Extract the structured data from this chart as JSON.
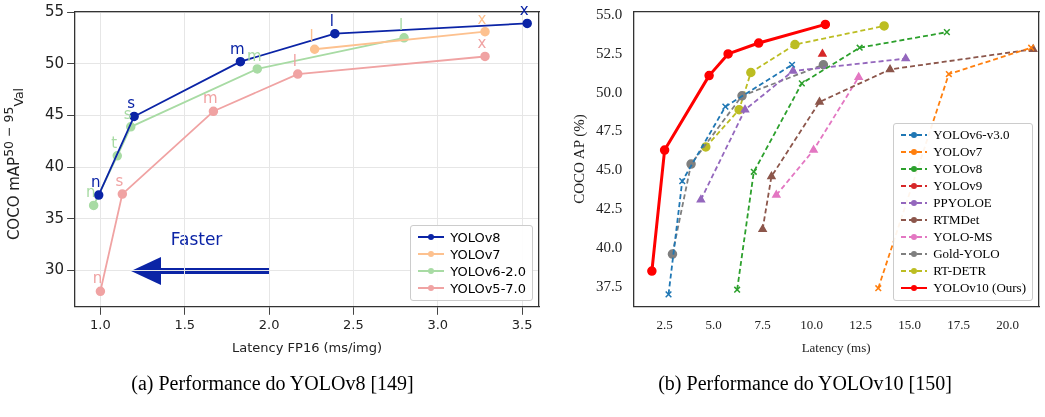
{
  "chart_data": [
    {
      "type": "line",
      "xlabel": "Latency FP16 (ms/img)",
      "ylabel": "COCO mAP$^{50 − 95}$$_{Val}$",
      "xlim": [
        0.85,
        3.6
      ],
      "ylim": [
        26.5,
        55
      ],
      "xticks": [
        {
          "value": 1,
          "label": "1.0"
        },
        {
          "value": 1.5,
          "label": "1.5"
        },
        {
          "value": 2,
          "label": "2.0"
        },
        {
          "value": 2.5,
          "label": "2.5"
        },
        {
          "value": 3,
          "label": "3.0"
        },
        {
          "value": 3.5,
          "label": "3.5"
        }
      ],
      "yticks": [
        30,
        35,
        40,
        45,
        50,
        55
      ],
      "grid": true,
      "legend": "bottom right",
      "marker": "circle",
      "line_style": "solid",
      "series": [
        {
          "name": "YOLOv8",
          "color": "#0b24a6",
          "x": [
            0.99,
            1.2,
            1.83,
            2.39,
            3.53
          ],
          "values": [
            37.3,
            44.9,
            50.2,
            52.9,
            53.9
          ],
          "value_labels": [
            "n",
            "s",
            "m",
            "l",
            "x"
          ]
        },
        {
          "name": "YOLOv7",
          "color": "#fdc18f",
          "x": [
            2.27,
            3.28
          ],
          "values": [
            51.4,
            53.1
          ],
          "value_labels": [
            "l",
            "x"
          ]
        },
        {
          "name": "YOLOv6-2.0",
          "color": "#a8dba4",
          "x": [
            0.96,
            1.1,
            1.18,
            1.93,
            2.8
          ],
          "values": [
            36.3,
            41.1,
            43.9,
            49.5,
            52.5
          ],
          "value_labels": [
            "n",
            "t",
            "s",
            "m",
            "l"
          ]
        },
        {
          "name": "YOLOv5-7.0",
          "color": "#f0a3a3",
          "x": [
            1.0,
            1.13,
            1.67,
            2.17,
            3.28
          ],
          "values": [
            28.0,
            37.4,
            45.4,
            49.0,
            50.7
          ],
          "value_labels": [
            "n",
            "s",
            "m",
            "l",
            "x"
          ]
        }
      ],
      "annotations": [
        "Faster",
        "(a) Performance do YOLOv8 [149]"
      ]
    },
    {
      "type": "line",
      "xlabel": "Latency (ms)",
      "ylabel": "COCO AP (%)",
      "xlim": [
        0.9,
        21.6
      ],
      "ylim": [
        36.2,
        55.2
      ],
      "xticks": [
        {
          "value": 2.5,
          "label": "2.5"
        },
        {
          "value": 5,
          "label": "5.0"
        },
        {
          "value": 7.5,
          "label": "7.5"
        },
        {
          "value": 10,
          "label": "10.0"
        },
        {
          "value": 12.5,
          "label": "12.5"
        },
        {
          "value": 15,
          "label": "15.0"
        },
        {
          "value": 17.5,
          "label": "17.5"
        },
        {
          "value": 20,
          "label": "20.0"
        }
      ],
      "yticks": [
        {
          "value": 37.5,
          "label": "37.5"
        },
        {
          "value": 40,
          "label": "40.0"
        },
        {
          "value": 42.5,
          "label": "42.5"
        },
        {
          "value": 45,
          "label": "45.0"
        },
        {
          "value": 47.5,
          "label": "47.5"
        },
        {
          "value": 50,
          "label": "50.0"
        },
        {
          "value": 52.5,
          "label": "52.5"
        },
        {
          "value": 55,
          "label": "55.0"
        }
      ],
      "legend": "bottom right",
      "series": [
        {
          "name": "YOLOv6-v3.0",
          "color": "#1f77b4",
          "marker": "cross",
          "line_style": "dashed",
          "x": [
            2.7,
            3.4,
            5.6,
            9.0
          ],
          "values": [
            37.0,
            44.3,
            49.1,
            51.8
          ]
        },
        {
          "name": "YOLOv7",
          "color": "#ff7f0e",
          "marker": "cross",
          "line_style": "dashed",
          "x": [
            13.4,
            17.0,
            21.2
          ],
          "values": [
            37.4,
            51.2,
            52.9
          ]
        },
        {
          "name": "YOLOv8",
          "color": "#2ca02c",
          "marker": "cross",
          "line_style": "dashed",
          "x": [
            6.2,
            7.05,
            9.5,
            12.45,
            16.9
          ],
          "values": [
            37.3,
            44.9,
            50.6,
            52.9,
            53.9
          ]
        },
        {
          "name": "YOLOv9",
          "color": "#d62728",
          "marker": "triangle",
          "line_style": "dashed",
          "x": [
            10.55
          ],
          "values": [
            52.5
          ]
        },
        {
          "name": "PPYOLOE",
          "color": "#9467bd",
          "marker": "triangle",
          "line_style": "dashed",
          "x": [
            4.35,
            6.6,
            9.05,
            14.8
          ],
          "values": [
            43.1,
            48.9,
            51.4,
            52.2
          ]
        },
        {
          "name": "RTMDet",
          "color": "#8c564b",
          "marker": "triangle",
          "line_style": "dashed",
          "x": [
            7.5,
            7.95,
            10.4,
            14.0,
            21.3
          ],
          "values": [
            41.2,
            44.6,
            49.4,
            51.5,
            52.8
          ]
        },
        {
          "name": "YOLO-MS",
          "color": "#e377c2",
          "marker": "triangle",
          "line_style": "dashed",
          "x": [
            8.2,
            10.1,
            12.4
          ],
          "values": [
            43.4,
            46.3,
            51.0
          ]
        },
        {
          "name": "Gold-YOLO",
          "color": "#7f7f7f",
          "marker": "circle",
          "line_style": "dashed",
          "x": [
            2.9,
            3.85,
            6.45,
            10.6
          ],
          "values": [
            39.6,
            45.4,
            49.8,
            51.8
          ]
        },
        {
          "name": "RT-DETR",
          "color": "#bcbd22",
          "marker": "circle",
          "line_style": "dashed",
          "x": [
            4.6,
            6.3,
            6.9,
            9.15,
            13.7
          ],
          "values": [
            46.5,
            48.9,
            51.3,
            53.1,
            54.3
          ]
        },
        {
          "name": "YOLOv10 (Ours)",
          "color": "#ff0000",
          "marker": "circle",
          "line_style": "solid",
          "x": [
            1.85,
            2.5,
            4.77,
            5.74,
            7.3,
            10.7
          ],
          "values": [
            38.5,
            46.3,
            51.1,
            52.5,
            53.2,
            54.4
          ]
        }
      ],
      "annotations": [
        "(b) Performance do YOLOv10 [150]"
      ]
    }
  ]
}
